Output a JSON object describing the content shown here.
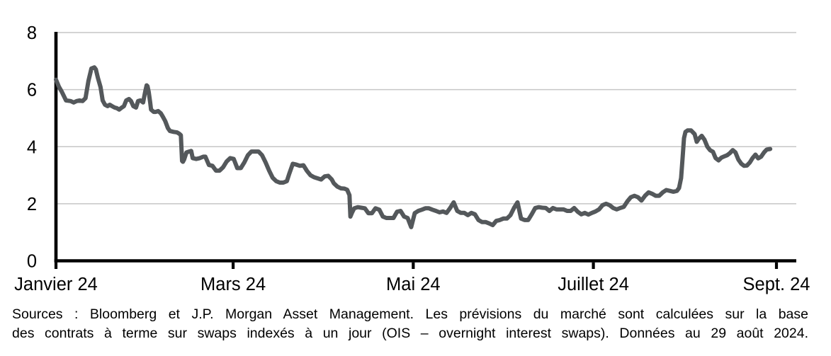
{
  "chart_data": {
    "type": "line",
    "title": "",
    "xlabel": "",
    "ylabel": "",
    "ylim": [
      0,
      8
    ],
    "y_ticks": [
      0,
      2,
      4,
      6,
      8
    ],
    "x_domain_days": [
      0,
      251
    ],
    "x_ticks": [
      {
        "day": 0,
        "label": "Janvier 24"
      },
      {
        "day": 60,
        "label": "Mars 24"
      },
      {
        "day": 121,
        "label": "Mai 24"
      },
      {
        "day": 182,
        "label": "Juillet 24"
      },
      {
        "day": 244,
        "label": "Sept. 24"
      }
    ],
    "grid": true,
    "legend_position": "none",
    "colors": {
      "line": "#54585b",
      "grid": "#c6c6c6",
      "axis": "#000000",
      "text": "#000000"
    },
    "points": [
      [
        0,
        6.35
      ],
      [
        1,
        6.1
      ],
      [
        2,
        5.92
      ],
      [
        3.4,
        5.62
      ],
      [
        5,
        5.6
      ],
      [
        6,
        5.55
      ],
      [
        7,
        5.6
      ],
      [
        8,
        5.62
      ],
      [
        9,
        5.6
      ],
      [
        10,
        5.7
      ],
      [
        11,
        6.3
      ],
      [
        12,
        6.74
      ],
      [
        13,
        6.78
      ],
      [
        13.5,
        6.71
      ],
      [
        14.2,
        6.41
      ],
      [
        15.1,
        6.09
      ],
      [
        15.8,
        5.62
      ],
      [
        16.6,
        5.47
      ],
      [
        17.5,
        5.42
      ],
      [
        18.2,
        5.47
      ],
      [
        19,
        5.42
      ],
      [
        19.9,
        5.37
      ],
      [
        20.6,
        5.35
      ],
      [
        21.4,
        5.3
      ],
      [
        22.3,
        5.37
      ],
      [
        23,
        5.42
      ],
      [
        23.8,
        5.62
      ],
      [
        24.7,
        5.67
      ],
      [
        25.4,
        5.6
      ],
      [
        26.2,
        5.42
      ],
      [
        27.1,
        5.37
      ],
      [
        27.8,
        5.6
      ],
      [
        28.6,
        5.62
      ],
      [
        29.5,
        5.55
      ],
      [
        30.2,
        5.92
      ],
      [
        30.7,
        6.15
      ],
      [
        31,
        6.12
      ],
      [
        31.4,
        5.92
      ],
      [
        31.9,
        5.55
      ],
      [
        32.2,
        5.3
      ],
      [
        33.1,
        5.22
      ],
      [
        33.8,
        5.22
      ],
      [
        34.6,
        5.25
      ],
      [
        35.5,
        5.17
      ],
      [
        36.2,
        5.05
      ],
      [
        37,
        4.9
      ],
      [
        37.9,
        4.65
      ],
      [
        38.6,
        4.55
      ],
      [
        39.8,
        4.52
      ],
      [
        41,
        4.5
      ],
      [
        41.8,
        4.45
      ],
      [
        42.3,
        4.4
      ],
      [
        42.7,
        3.5
      ],
      [
        43,
        3.47
      ],
      [
        43.4,
        3.55
      ],
      [
        44.2,
        3.8
      ],
      [
        45.1,
        3.83
      ],
      [
        45.8,
        3.85
      ],
      [
        46.3,
        3.6
      ],
      [
        47.5,
        3.57
      ],
      [
        48.7,
        3.6
      ],
      [
        49.9,
        3.65
      ],
      [
        50.6,
        3.65
      ],
      [
        51.8,
        3.36
      ],
      [
        53,
        3.33
      ],
      [
        54.2,
        3.16
      ],
      [
        55.4,
        3.16
      ],
      [
        56.6,
        3.28
      ],
      [
        57.8,
        3.48
      ],
      [
        59,
        3.6
      ],
      [
        60.2,
        3.57
      ],
      [
        61.4,
        3.25
      ],
      [
        62.6,
        3.25
      ],
      [
        63.8,
        3.45
      ],
      [
        65,
        3.7
      ],
      [
        66.2,
        3.83
      ],
      [
        67.4,
        3.83
      ],
      [
        68.6,
        3.83
      ],
      [
        69.8,
        3.7
      ],
      [
        71,
        3.45
      ],
      [
        72.2,
        3.16
      ],
      [
        73.4,
        2.91
      ],
      [
        74.6,
        2.79
      ],
      [
        75.8,
        2.74
      ],
      [
        77,
        2.74
      ],
      [
        78.2,
        2.79
      ],
      [
        79,
        3.05
      ],
      [
        80.2,
        3.4
      ],
      [
        81.4,
        3.37
      ],
      [
        82.6,
        3.33
      ],
      [
        83.8,
        3.35
      ],
      [
        85,
        3.15
      ],
      [
        86.2,
        3.0
      ],
      [
        87.4,
        2.93
      ],
      [
        88.6,
        2.89
      ],
      [
        89.8,
        2.85
      ],
      [
        91,
        2.96
      ],
      [
        92.2,
        2.98
      ],
      [
        93.4,
        2.85
      ],
      [
        94.1,
        2.72
      ],
      [
        95.3,
        2.6
      ],
      [
        96.5,
        2.54
      ],
      [
        97.7,
        2.53
      ],
      [
        98.6,
        2.49
      ],
      [
        99.4,
        2.3
      ],
      [
        99.7,
        1.55
      ],
      [
        100.3,
        1.7
      ],
      [
        101,
        1.84
      ],
      [
        102.2,
        1.88
      ],
      [
        103.4,
        1.86
      ],
      [
        104.6,
        1.84
      ],
      [
        105.8,
        1.67
      ],
      [
        107,
        1.67
      ],
      [
        108.2,
        1.84
      ],
      [
        109.5,
        1.79
      ],
      [
        110.7,
        1.55
      ],
      [
        111.9,
        1.5
      ],
      [
        113.1,
        1.5
      ],
      [
        114.3,
        1.5
      ],
      [
        115.5,
        1.72
      ],
      [
        116.7,
        1.75
      ],
      [
        117.9,
        1.55
      ],
      [
        119.1,
        1.5
      ],
      [
        120.3,
        1.18
      ],
      [
        121.5,
        1.67
      ],
      [
        122.7,
        1.75
      ],
      [
        123.9,
        1.79
      ],
      [
        125.1,
        1.84
      ],
      [
        126.3,
        1.84
      ],
      [
        127.5,
        1.79
      ],
      [
        128.7,
        1.75
      ],
      [
        129.9,
        1.7
      ],
      [
        131.1,
        1.73
      ],
      [
        132.3,
        1.68
      ],
      [
        133.5,
        1.85
      ],
      [
        134.7,
        2.05
      ],
      [
        135.9,
        1.75
      ],
      [
        137.1,
        1.68
      ],
      [
        138.3,
        1.68
      ],
      [
        139.5,
        1.6
      ],
      [
        140.7,
        1.68
      ],
      [
        141.9,
        1.63
      ],
      [
        143.1,
        1.43
      ],
      [
        144.3,
        1.36
      ],
      [
        145.5,
        1.36
      ],
      [
        146.7,
        1.31
      ],
      [
        147.9,
        1.25
      ],
      [
        149.1,
        1.4
      ],
      [
        150.3,
        1.43
      ],
      [
        151.5,
        1.48
      ],
      [
        152.7,
        1.48
      ],
      [
        153.9,
        1.6
      ],
      [
        155.1,
        1.85
      ],
      [
        156.3,
        2.05
      ],
      [
        157.5,
        1.48
      ],
      [
        158.7,
        1.43
      ],
      [
        159.9,
        1.43
      ],
      [
        161.1,
        1.63
      ],
      [
        162.3,
        1.85
      ],
      [
        163.5,
        1.88
      ],
      [
        164.7,
        1.86
      ],
      [
        165.9,
        1.85
      ],
      [
        167.1,
        1.75
      ],
      [
        168.3,
        1.85
      ],
      [
        169.5,
        1.8
      ],
      [
        170.7,
        1.8
      ],
      [
        171.9,
        1.8
      ],
      [
        173.1,
        1.75
      ],
      [
        174.3,
        1.75
      ],
      [
        175.5,
        1.85
      ],
      [
        176.7,
        1.72
      ],
      [
        177.9,
        1.63
      ],
      [
        179.1,
        1.68
      ],
      [
        180.3,
        1.62
      ],
      [
        181.5,
        1.68
      ],
      [
        182.7,
        1.73
      ],
      [
        183.9,
        1.8
      ],
      [
        185.1,
        1.95
      ],
      [
        186.3,
        2.0
      ],
      [
        187.5,
        1.95
      ],
      [
        188.7,
        1.85
      ],
      [
        189.9,
        1.8
      ],
      [
        191.1,
        1.85
      ],
      [
        192.3,
        1.89
      ],
      [
        193.5,
        2.08
      ],
      [
        194.7,
        2.23
      ],
      [
        195.9,
        2.28
      ],
      [
        197.1,
        2.23
      ],
      [
        198.3,
        2.11
      ],
      [
        199.5,
        2.28
      ],
      [
        200.7,
        2.4
      ],
      [
        201.9,
        2.35
      ],
      [
        203.1,
        2.28
      ],
      [
        204.3,
        2.28
      ],
      [
        205.5,
        2.4
      ],
      [
        206.7,
        2.48
      ],
      [
        207.9,
        2.45
      ],
      [
        209.1,
        2.42
      ],
      [
        210.3,
        2.45
      ],
      [
        211,
        2.55
      ],
      [
        211.7,
        2.9
      ],
      [
        212.2,
        3.6
      ],
      [
        212.7,
        4.3
      ],
      [
        213.2,
        4.52
      ],
      [
        213.9,
        4.57
      ],
      [
        215.1,
        4.57
      ],
      [
        216.3,
        4.44
      ],
      [
        217,
        4.17
      ],
      [
        217.7,
        4.28
      ],
      [
        218.7,
        4.38
      ],
      [
        219.6,
        4.25
      ],
      [
        220.6,
        4.0
      ],
      [
        221.5,
        3.88
      ],
      [
        222.5,
        3.82
      ],
      [
        223.4,
        3.6
      ],
      [
        224.4,
        3.52
      ],
      [
        225.4,
        3.62
      ],
      [
        226.3,
        3.66
      ],
      [
        227.3,
        3.7
      ],
      [
        228.2,
        3.77
      ],
      [
        229.2,
        3.88
      ],
      [
        230.1,
        3.8
      ],
      [
        231.1,
        3.55
      ],
      [
        232.1,
        3.4
      ],
      [
        233,
        3.33
      ],
      [
        234,
        3.34
      ],
      [
        235,
        3.45
      ],
      [
        235.9,
        3.6
      ],
      [
        236.9,
        3.72
      ],
      [
        237.8,
        3.59
      ],
      [
        238.8,
        3.65
      ],
      [
        239.8,
        3.8
      ],
      [
        240.7,
        3.9
      ],
      [
        241.9,
        3.92
      ]
    ]
  },
  "caption": {
    "line1": "Sources : Bloomberg et J.P. Morgan Asset Management. Les prévisions du marché sont calculées sur la base",
    "line2": "des contrats à terme sur swaps indexés à un jour (OIS – overnight interest swaps). Données au 29 août 2024."
  }
}
